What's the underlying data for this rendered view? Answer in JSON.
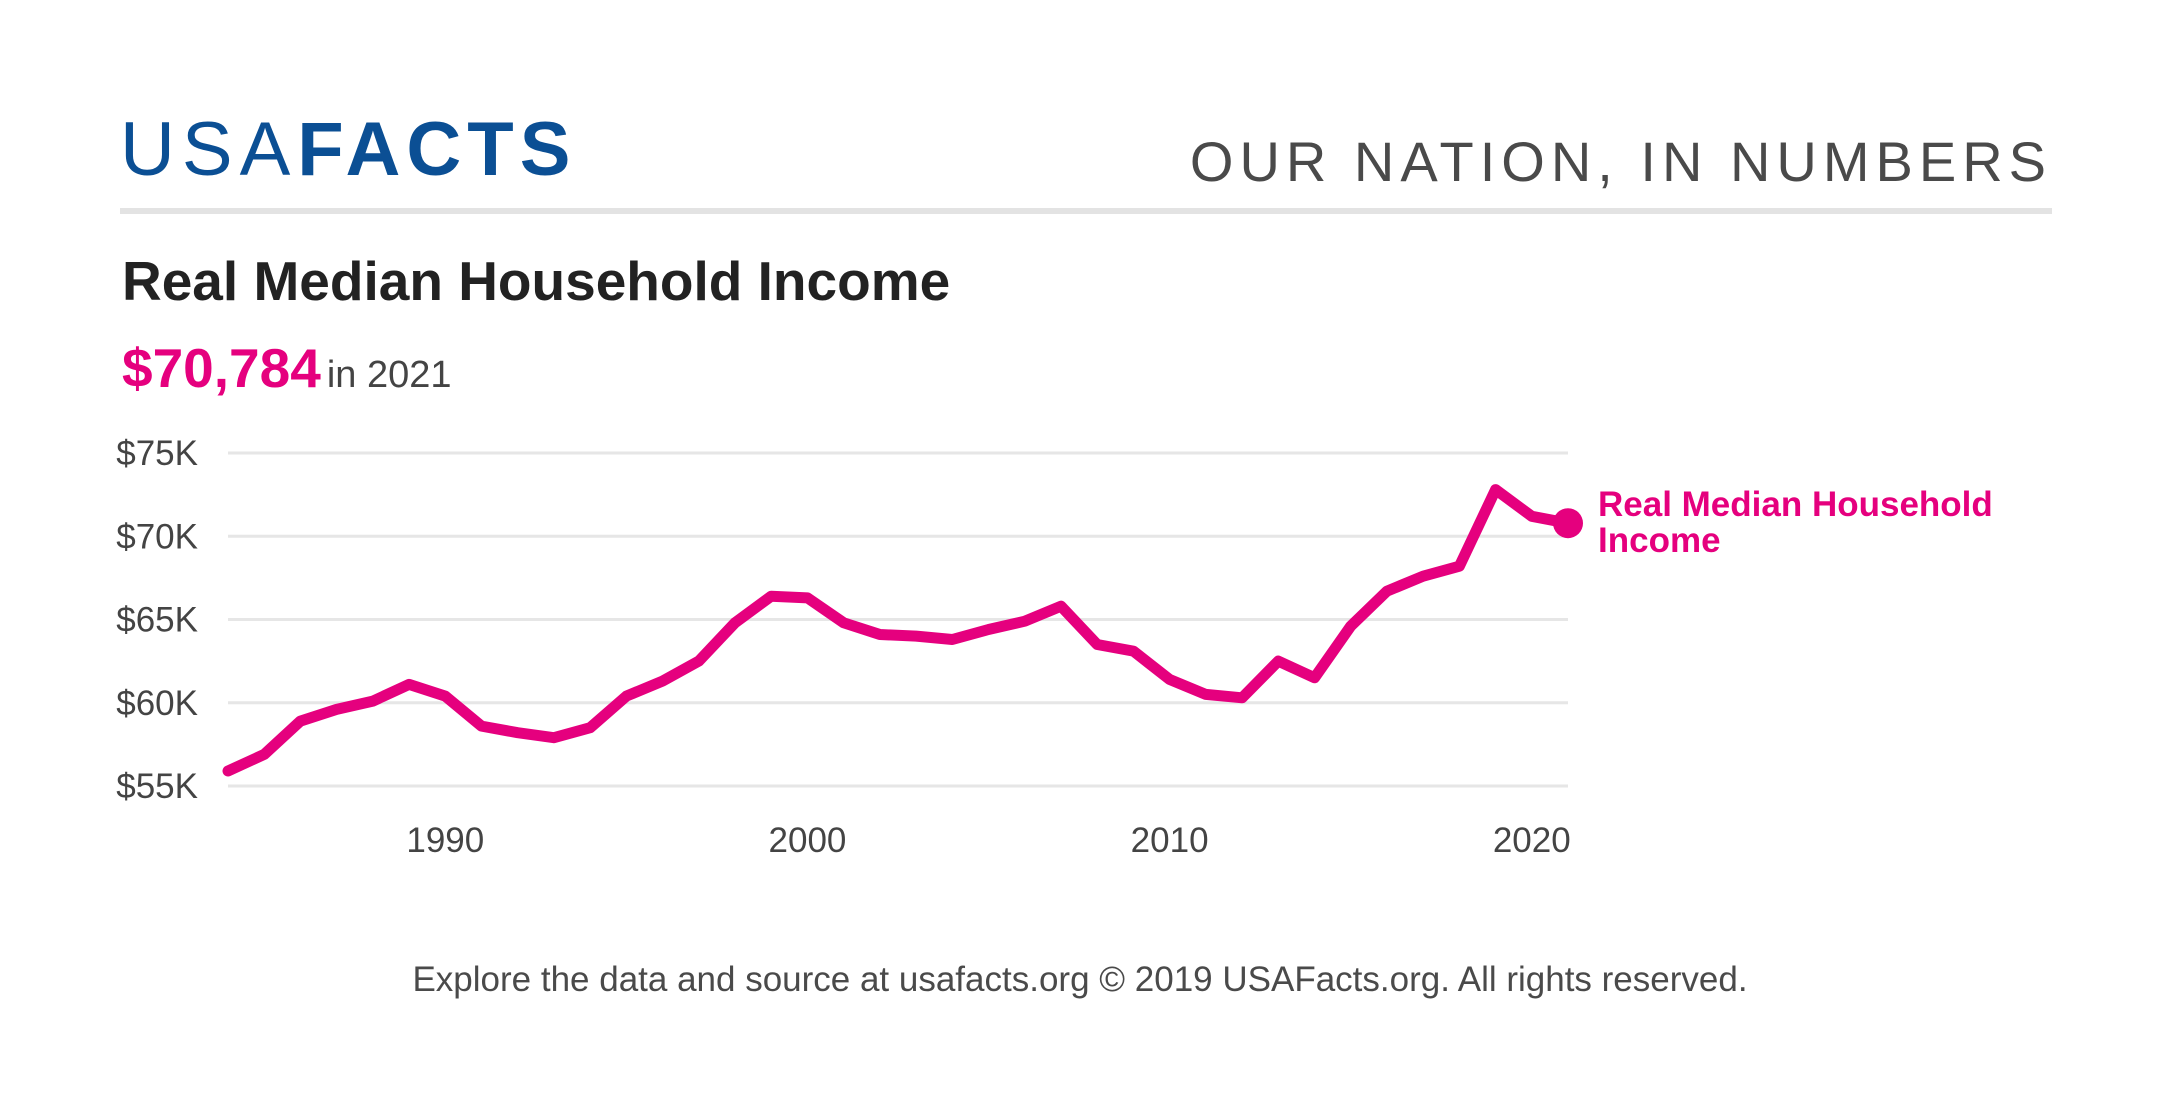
{
  "header": {
    "logo_light": "USA",
    "logo_bold": "FACTS",
    "tagline": "OUR NATION, IN NUMBERS"
  },
  "colors": {
    "brand": "#0b4f94",
    "accent": "#e5007e"
  },
  "title": "Real Median Household Income",
  "highlight": {
    "value": "$70,784",
    "suffix": "in 2021"
  },
  "chart_data": {
    "type": "line",
    "title": "Real Median Household Income",
    "xlabel": "",
    "ylabel": "",
    "xlim": [
      1984,
      2021
    ],
    "ylim": [
      55000,
      75000
    ],
    "y_ticks": [
      55000,
      60000,
      65000,
      70000,
      75000
    ],
    "y_tick_labels": [
      "$55K",
      "$60K",
      "$65K",
      "$70K",
      "$75K"
    ],
    "x_ticks": [
      1990,
      2000,
      2010,
      2020
    ],
    "x_tick_labels": [
      "1990",
      "2000",
      "2010",
      "2020"
    ],
    "grid": true,
    "legend": "none",
    "series": [
      {
        "name": "Real Median Household Income",
        "color": "#e5007e",
        "x": [
          1984,
          1985,
          1986,
          1987,
          1988,
          1989,
          1990,
          1991,
          1992,
          1993,
          1994,
          1995,
          1996,
          1997,
          1998,
          1999,
          2000,
          2001,
          2002,
          2003,
          2004,
          2005,
          2006,
          2007,
          2008,
          2009,
          2010,
          2011,
          2012,
          2013,
          2014,
          2015,
          2016,
          2017,
          2018,
          2019,
          2020,
          2021
        ],
        "y": [
          55900,
          56900,
          58900,
          59600,
          60100,
          61100,
          60400,
          58600,
          58200,
          57900,
          58500,
          60400,
          61300,
          62500,
          64800,
          66400,
          66300,
          64800,
          64100,
          64000,
          63800,
          64400,
          64900,
          65800,
          63500,
          63100,
          61400,
          60500,
          60300,
          62500,
          61500,
          64600,
          66700,
          67600,
          68200,
          72800,
          71200,
          70784
        ],
        "end_label": "Real Median Household Income"
      }
    ]
  },
  "footer": "Explore the data and source at usafacts.org © 2019 USAFacts.org. All rights reserved."
}
